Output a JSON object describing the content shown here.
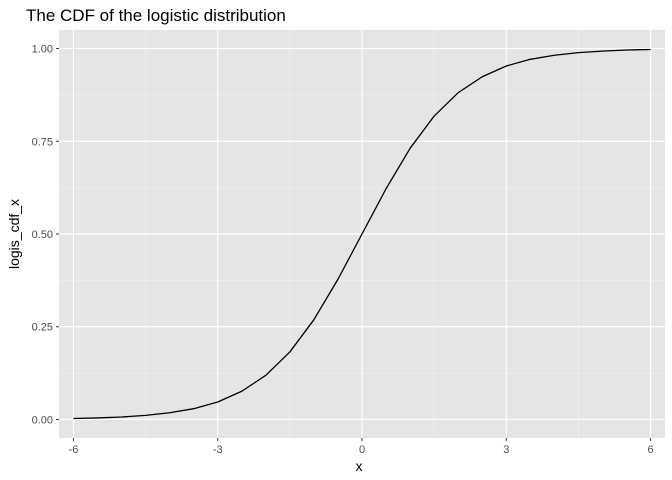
{
  "chart_data": {
    "type": "line",
    "title": "The CDF of the logistic distribution",
    "xlabel": "x",
    "ylabel": "logis_cdf_x",
    "xlim": [
      -6.3,
      6.3
    ],
    "ylim": [
      -0.05,
      1.05
    ],
    "x_ticks": [
      -6,
      -3,
      0,
      3,
      6
    ],
    "x_tick_labels": [
      "-6",
      "-3",
      "0",
      "3",
      "6"
    ],
    "y_ticks": [
      0,
      0.25,
      0.5,
      0.75,
      1
    ],
    "y_tick_labels": [
      "0.00",
      "0.25",
      "0.50",
      "0.75",
      "1.00"
    ],
    "grid": true,
    "series": [
      {
        "x": [
          -6,
          -5.5,
          -5,
          -4.5,
          -4,
          -3.5,
          -3,
          -2.5,
          -2,
          -1.5,
          -1,
          -0.5,
          0,
          0.5,
          1,
          1.5,
          2,
          2.5,
          3,
          3.5,
          4,
          4.5,
          5,
          5.5,
          6
        ],
        "values": [
          0.0025,
          0.0041,
          0.0067,
          0.011,
          0.018,
          0.029,
          0.047,
          0.076,
          0.119,
          0.182,
          0.269,
          0.378,
          0.5,
          0.622,
          0.731,
          0.818,
          0.881,
          0.924,
          0.953,
          0.971,
          0.982,
          0.989,
          0.993,
          0.996,
          0.9975
        ]
      }
    ]
  }
}
